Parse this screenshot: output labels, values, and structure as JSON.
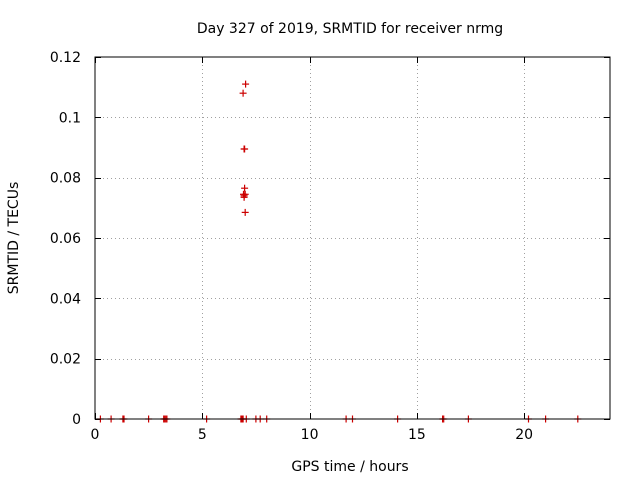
{
  "chart_data": {
    "type": "scatter",
    "title": "Day 327 of 2019, SRMTID for receiver nrmg",
    "xlabel": "GPS time / hours",
    "ylabel": "SRMTID / TECUs",
    "xlim": [
      0,
      24
    ],
    "ylim": [
      0,
      0.12
    ],
    "xticks": [
      0,
      5,
      10,
      15,
      20
    ],
    "xtick_labels": [
      "0",
      "5",
      "10",
      "15",
      "20"
    ],
    "yticks": [
      0,
      0.02,
      0.04,
      0.06,
      0.08,
      0.1,
      0.12
    ],
    "ytick_labels": [
      "0",
      "0.02",
      "0.04",
      "0.06",
      "0.08",
      "0.1",
      "0.12"
    ],
    "grid": true,
    "marker": "+",
    "series": [
      {
        "name": "SRMTID",
        "color": "#cc0000",
        "x": [
          0.25,
          0.75,
          1.3,
          1.35,
          2.5,
          3.2,
          3.25,
          3.3,
          3.35,
          5.2,
          6.8,
          6.85,
          6.9,
          6.9,
          6.92,
          6.95,
          6.95,
          6.95,
          6.97,
          6.97,
          7.0,
          7.0,
          7.02,
          7.05,
          7.5,
          7.7,
          8.0,
          11.7,
          12.0,
          14.1,
          16.2,
          16.25,
          17.4,
          20.2,
          21.0,
          22.5
        ],
        "y": [
          0,
          0,
          0,
          0,
          0,
          0,
          0,
          0,
          0,
          0,
          0,
          0,
          0,
          0.108,
          0.0745,
          0.0895,
          0.074,
          0.0735,
          0.0895,
          0.0765,
          0.0745,
          0.0685,
          0.111,
          0,
          0,
          0,
          0,
          0,
          0,
          0,
          0,
          0,
          0,
          0,
          0,
          0
        ]
      }
    ]
  }
}
